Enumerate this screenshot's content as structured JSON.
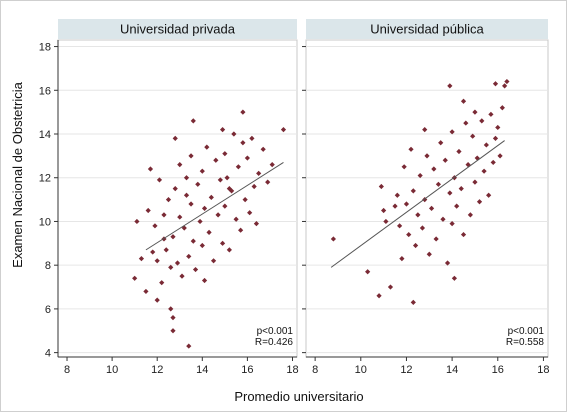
{
  "chart_data": {
    "type": "scatter",
    "xlabel": "Promedio universitario",
    "ylabel": "Examen Nacional de Obstetricia",
    "xlim": [
      7.6,
      18.2
    ],
    "ylim": [
      3.8,
      18.3
    ],
    "xticks": [
      "8",
      "10",
      "12",
      "14",
      "16",
      "18"
    ],
    "yticks": [
      "4",
      "6",
      "8",
      "10",
      "12",
      "14",
      "16",
      "18"
    ],
    "grid": "horizontal",
    "colors": {
      "points": "#7a2a35",
      "fit_line": "#555555",
      "strip": "#dbe6ea",
      "plot_border": "#c8c8c8"
    },
    "panels": [
      {
        "title": "Universidad privada",
        "stats": [
          "p<0.001",
          "R=0.426"
        ],
        "fit": {
          "x": [
            11.5,
            17.6
          ],
          "y": [
            8.7,
            12.7
          ]
        },
        "points": [
          [
            11.0,
            7.4
          ],
          [
            11.1,
            10.0
          ],
          [
            11.3,
            8.3
          ],
          [
            11.5,
            6.8
          ],
          [
            11.6,
            10.5
          ],
          [
            11.7,
            12.4
          ],
          [
            11.8,
            8.6
          ],
          [
            11.9,
            9.8
          ],
          [
            12.0,
            6.4
          ],
          [
            12.0,
            8.2
          ],
          [
            12.1,
            11.9
          ],
          [
            12.2,
            7.2
          ],
          [
            12.3,
            10.3
          ],
          [
            12.4,
            8.7
          ],
          [
            12.5,
            11.0
          ],
          [
            12.6,
            7.9
          ],
          [
            12.7,
            9.3
          ],
          [
            12.8,
            11.5
          ],
          [
            12.9,
            8.1
          ],
          [
            13.0,
            10.2
          ],
          [
            13.0,
            12.6
          ],
          [
            13.1,
            7.5
          ],
          [
            13.2,
            9.7
          ],
          [
            13.3,
            11.2
          ],
          [
            13.4,
            8.4
          ],
          [
            13.5,
            10.8
          ],
          [
            13.5,
            13.0
          ],
          [
            13.6,
            9.1
          ],
          [
            13.7,
            7.8
          ],
          [
            13.8,
            11.7
          ],
          [
            13.9,
            10.0
          ],
          [
            14.0,
            12.3
          ],
          [
            14.0,
            8.9
          ],
          [
            14.1,
            10.6
          ],
          [
            14.2,
            13.4
          ],
          [
            14.3,
            9.5
          ],
          [
            14.4,
            11.1
          ],
          [
            14.5,
            8.2
          ],
          [
            14.6,
            12.8
          ],
          [
            14.7,
            10.3
          ],
          [
            14.8,
            11.9
          ],
          [
            14.9,
            9.0
          ],
          [
            15.0,
            13.1
          ],
          [
            15.0,
            10.7
          ],
          [
            15.1,
            12.0
          ],
          [
            15.2,
            8.7
          ],
          [
            15.3,
            11.4
          ],
          [
            15.4,
            14.0
          ],
          [
            15.5,
            10.1
          ],
          [
            15.6,
            12.5
          ],
          [
            15.7,
            9.6
          ],
          [
            15.8,
            13.6
          ],
          [
            15.9,
            11.0
          ],
          [
            16.0,
            12.9
          ],
          [
            16.1,
            10.4
          ],
          [
            16.2,
            13.8
          ],
          [
            16.3,
            11.6
          ],
          [
            16.4,
            9.9
          ],
          [
            16.5,
            12.2
          ],
          [
            16.7,
            13.3
          ],
          [
            16.9,
            11.8
          ],
          [
            17.1,
            12.6
          ],
          [
            17.6,
            14.2
          ],
          [
            12.6,
            6.0
          ],
          [
            12.7,
            5.6
          ],
          [
            12.7,
            5.0
          ],
          [
            13.4,
            4.3
          ],
          [
            12.8,
            13.8
          ],
          [
            13.6,
            14.6
          ],
          [
            14.9,
            14.2
          ],
          [
            15.8,
            15.0
          ],
          [
            12.3,
            9.2
          ],
          [
            13.3,
            12.0
          ],
          [
            14.1,
            7.3
          ],
          [
            15.2,
            11.5
          ]
        ]
      },
      {
        "title": "Universidad pública",
        "stats": [
          "p<0.001",
          "R=0.558"
        ],
        "fit": {
          "x": [
            8.7,
            16.3
          ],
          "y": [
            7.9,
            13.7
          ]
        },
        "points": [
          [
            8.8,
            9.2
          ],
          [
            10.3,
            7.7
          ],
          [
            10.8,
            6.6
          ],
          [
            10.9,
            11.6
          ],
          [
            11.0,
            10.5
          ],
          [
            11.1,
            10.0
          ],
          [
            11.3,
            7.0
          ],
          [
            11.6,
            11.2
          ],
          [
            11.7,
            9.8
          ],
          [
            11.8,
            8.3
          ],
          [
            11.9,
            12.5
          ],
          [
            12.0,
            10.8
          ],
          [
            12.1,
            9.4
          ],
          [
            12.2,
            13.3
          ],
          [
            12.3,
            11.4
          ],
          [
            12.4,
            8.9
          ],
          [
            12.5,
            10.3
          ],
          [
            12.6,
            12.1
          ],
          [
            12.7,
            9.7
          ],
          [
            12.8,
            11.0
          ],
          [
            12.9,
            13.0
          ],
          [
            13.0,
            8.5
          ],
          [
            13.1,
            10.6
          ],
          [
            13.2,
            12.4
          ],
          [
            13.3,
            9.2
          ],
          [
            13.4,
            11.7
          ],
          [
            13.5,
            13.6
          ],
          [
            13.6,
            10.1
          ],
          [
            13.7,
            12.8
          ],
          [
            13.8,
            8.1
          ],
          [
            13.9,
            11.3
          ],
          [
            14.0,
            14.1
          ],
          [
            14.0,
            9.9
          ],
          [
            14.1,
            12.0
          ],
          [
            14.2,
            10.7
          ],
          [
            14.3,
            13.2
          ],
          [
            14.4,
            11.5
          ],
          [
            14.5,
            9.4
          ],
          [
            14.6,
            14.5
          ],
          [
            14.7,
            12.6
          ],
          [
            14.8,
            10.3
          ],
          [
            14.9,
            13.9
          ],
          [
            15.0,
            11.8
          ],
          [
            15.0,
            15.0
          ],
          [
            15.1,
            12.9
          ],
          [
            15.2,
            10.9
          ],
          [
            15.3,
            14.6
          ],
          [
            15.4,
            12.3
          ],
          [
            15.5,
            13.5
          ],
          [
            15.6,
            11.2
          ],
          [
            15.7,
            14.9
          ],
          [
            15.8,
            12.7
          ],
          [
            15.9,
            13.8
          ],
          [
            16.0,
            14.3
          ],
          [
            16.1,
            13.0
          ],
          [
            16.2,
            15.2
          ],
          [
            16.3,
            16.2
          ],
          [
            16.4,
            16.4
          ],
          [
            15.9,
            16.3
          ],
          [
            14.1,
            7.4
          ],
          [
            12.3,
            6.3
          ],
          [
            13.9,
            16.2
          ],
          [
            11.5,
            10.7
          ],
          [
            12.8,
            14.2
          ],
          [
            14.5,
            15.5
          ]
        ]
      }
    ]
  }
}
